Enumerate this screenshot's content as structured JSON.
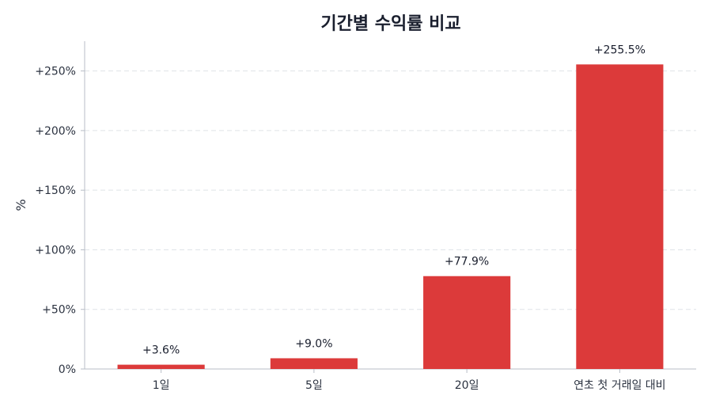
{
  "chart_data": {
    "type": "bar",
    "title": "기간별 수익률 비교",
    "xlabel": "",
    "ylabel": "%",
    "categories": [
      "1일",
      "5일",
      "20일",
      "연초 첫 거래일 대비"
    ],
    "values": [
      3.6,
      9.0,
      77.9,
      255.5
    ],
    "data_labels": [
      "+3.6%",
      "+9.0%",
      "+77.9%",
      "+255.5%"
    ],
    "ylim": [
      0,
      275
    ],
    "yticks": [
      0,
      50,
      100,
      150,
      200,
      250
    ],
    "ytick_labels": [
      "0%",
      "+50%",
      "+100%",
      "+150%",
      "+200%",
      "+250%"
    ],
    "grid": true,
    "legend": "none",
    "bar_color": "#dc3a3a"
  }
}
